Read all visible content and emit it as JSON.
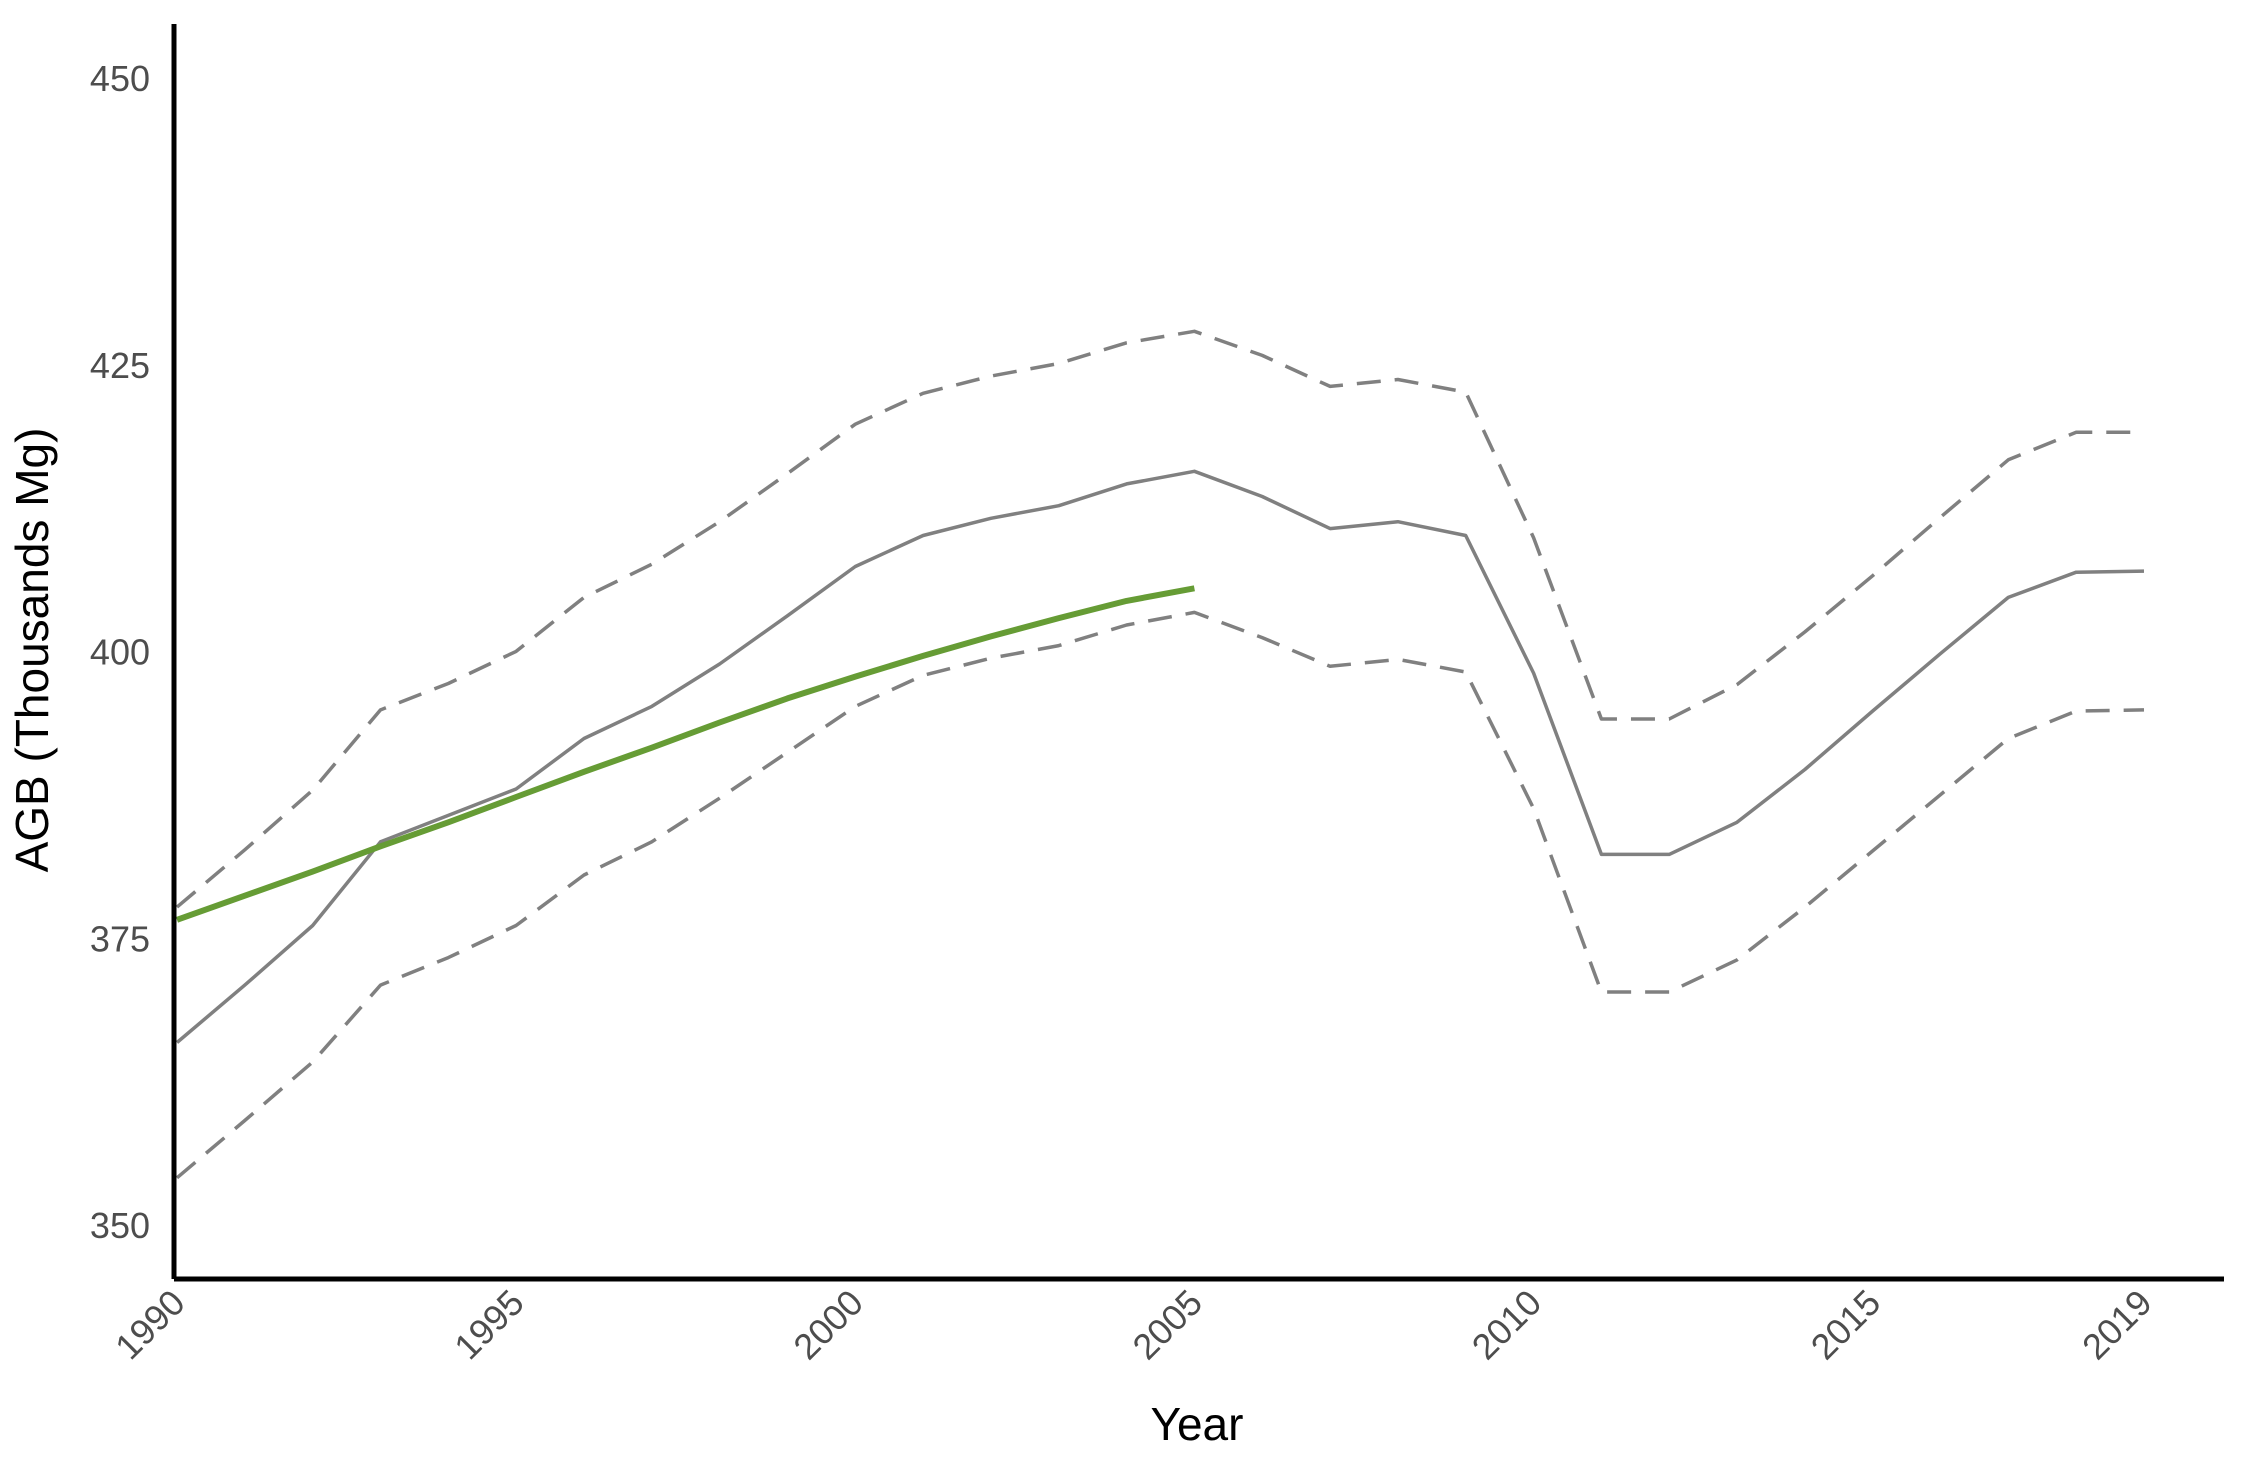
{
  "chart_data": {
    "type": "line",
    "title": "",
    "xlabel": "Year",
    "ylabel": "AGB (Thousands Mg)",
    "xlim": [
      1990,
      2019
    ],
    "ylim": [
      348,
      453
    ],
    "x_ticks": [
      1990,
      1995,
      2000,
      2005,
      2010,
      2015,
      2019
    ],
    "y_ticks": [
      350,
      375,
      400,
      425,
      450
    ],
    "grid": false,
    "legend": "none",
    "x": [
      1990,
      1991,
      1992,
      1993,
      1994,
      1995,
      1996,
      1997,
      1998,
      1999,
      2000,
      2001,
      2002,
      2003,
      2004,
      2005,
      2006,
      2007,
      2008,
      2009,
      2010,
      2011,
      2012,
      2013,
      2014,
      2015,
      2016,
      2017,
      2018,
      2019
    ],
    "series": [
      {
        "color": "#808080",
        "style": "solid",
        "values": [
          366.0,
          371.0,
          376.2,
          383.5,
          385.8,
          388.1,
          392.5,
          395.3,
          399.0,
          403.2,
          407.5,
          410.2,
          411.7,
          412.8,
          414.7,
          415.8,
          413.6,
          410.8,
          411.4,
          410.2,
          398.2,
          382.4,
          382.4,
          385.2,
          389.8,
          394.9,
          399.9,
          404.8,
          407.0,
          407.1
        ]
      },
      {
        "color": "#808080",
        "style": "dashed",
        "values": [
          377.8,
          382.8,
          388.0,
          395.0,
          397.3,
          400.1,
          404.8,
          407.7,
          411.4,
          415.6,
          419.9,
          422.6,
          424.1,
          425.2,
          427.0,
          428.0,
          425.9,
          423.2,
          423.8,
          422.7,
          410.0,
          394.2,
          394.2,
          397.2,
          401.8,
          406.7,
          411.8,
          416.8,
          419.2,
          419.2
        ]
      },
      {
        "color": "#808080",
        "style": "dashed",
        "values": [
          354.2,
          359.2,
          364.3,
          371.0,
          373.4,
          376.2,
          380.6,
          383.5,
          387.3,
          391.3,
          395.3,
          398.0,
          399.5,
          400.6,
          402.4,
          403.5,
          401.3,
          398.8,
          399.4,
          398.3,
          386.4,
          370.4,
          370.4,
          373.2,
          377.8,
          382.7,
          387.6,
          392.5,
          394.9,
          395.0
        ]
      },
      {
        "color": "#669c35",
        "style": "solid",
        "x": [
          1990,
          1991,
          1992,
          1993,
          1994,
          1995,
          1996,
          1997,
          1998,
          1999,
          2000,
          2001,
          2002,
          2003,
          2004,
          2005
        ],
        "values": [
          376.7,
          378.8,
          380.9,
          383.1,
          385.2,
          387.4,
          389.6,
          391.7,
          393.9,
          396.0,
          397.9,
          399.7,
          401.4,
          403.0,
          404.5,
          405.6
        ]
      }
    ]
  }
}
